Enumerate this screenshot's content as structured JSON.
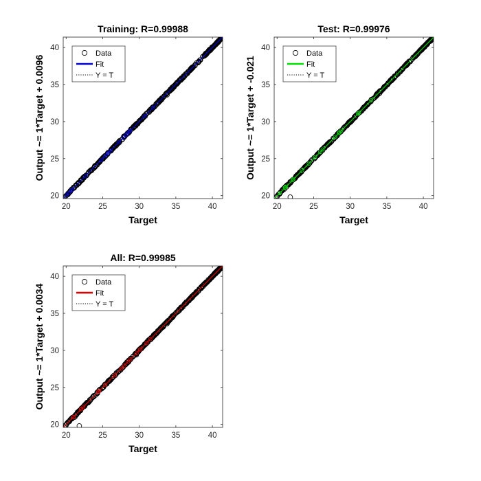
{
  "chart_data": [
    {
      "type": "scatter",
      "title": "Training: R=0.99988",
      "xlabel": "Target",
      "ylabel": "Output ~= 1*Target + 0.0096",
      "xlim": [
        19.6,
        41.4
      ],
      "ylim": [
        19.6,
        41.4
      ],
      "xticks": [
        20,
        25,
        30,
        35,
        40
      ],
      "yticks": [
        20,
        25,
        30,
        35,
        40
      ],
      "fit_color": "#0000cc",
      "fit": {
        "slope": 1,
        "intercept": 0.0096
      },
      "legend": {
        "position": "top-left",
        "entries": [
          "Data",
          "Fit",
          "Y = T"
        ]
      },
      "series": [
        {
          "name": "Data",
          "x_range": [
            19.9,
            41.3
          ],
          "outliers": [
            [
              29.5,
              29.4
            ],
            [
              33.8,
              33.6
            ],
            [
              22.2,
              22.1
            ]
          ]
        }
      ]
    },
    {
      "type": "scatter",
      "title": "Test: R=0.99976",
      "xlabel": "Target",
      "ylabel": "Output ~= 1*Target + -0.021",
      "xlim": [
        19.6,
        41.4
      ],
      "ylim": [
        19.6,
        41.4
      ],
      "xticks": [
        20,
        25,
        30,
        35,
        40
      ],
      "yticks": [
        20,
        25,
        30,
        35,
        40
      ],
      "fit_color": "#00dd00",
      "fit": {
        "slope": 1,
        "intercept": -0.021
      },
      "legend": {
        "position": "top-left",
        "entries": [
          "Data",
          "Fit",
          "Y = T"
        ]
      },
      "series": [
        {
          "name": "Data",
          "x_range": [
            19.9,
            41.3
          ],
          "outliers": [
            [
              21.8,
              19.8
            ],
            [
              34.0,
              33.8
            ],
            [
              29.6,
              29.5
            ]
          ]
        }
      ]
    },
    {
      "type": "scatter",
      "title": "All: R=0.99985",
      "xlabel": "Target",
      "ylabel": "Output ~= 1*Target + 0.0034",
      "xlim": [
        19.6,
        41.4
      ],
      "ylim": [
        19.6,
        41.4
      ],
      "xticks": [
        20,
        25,
        30,
        35,
        40
      ],
      "yticks": [
        20,
        25,
        30,
        35,
        40
      ],
      "fit_color": "#dd0000",
      "fit": {
        "slope": 1,
        "intercept": 0.0034
      },
      "legend": {
        "position": "top-left",
        "entries": [
          "Data",
          "Fit",
          "Y = T"
        ]
      },
      "series": [
        {
          "name": "Data",
          "x_range": [
            19.9,
            41.3
          ],
          "outliers": [
            [
              21.8,
              19.8
            ],
            [
              29.6,
              29.4
            ],
            [
              21.2,
              21.0
            ],
            [
              33.8,
              33.6
            ]
          ]
        }
      ]
    }
  ]
}
